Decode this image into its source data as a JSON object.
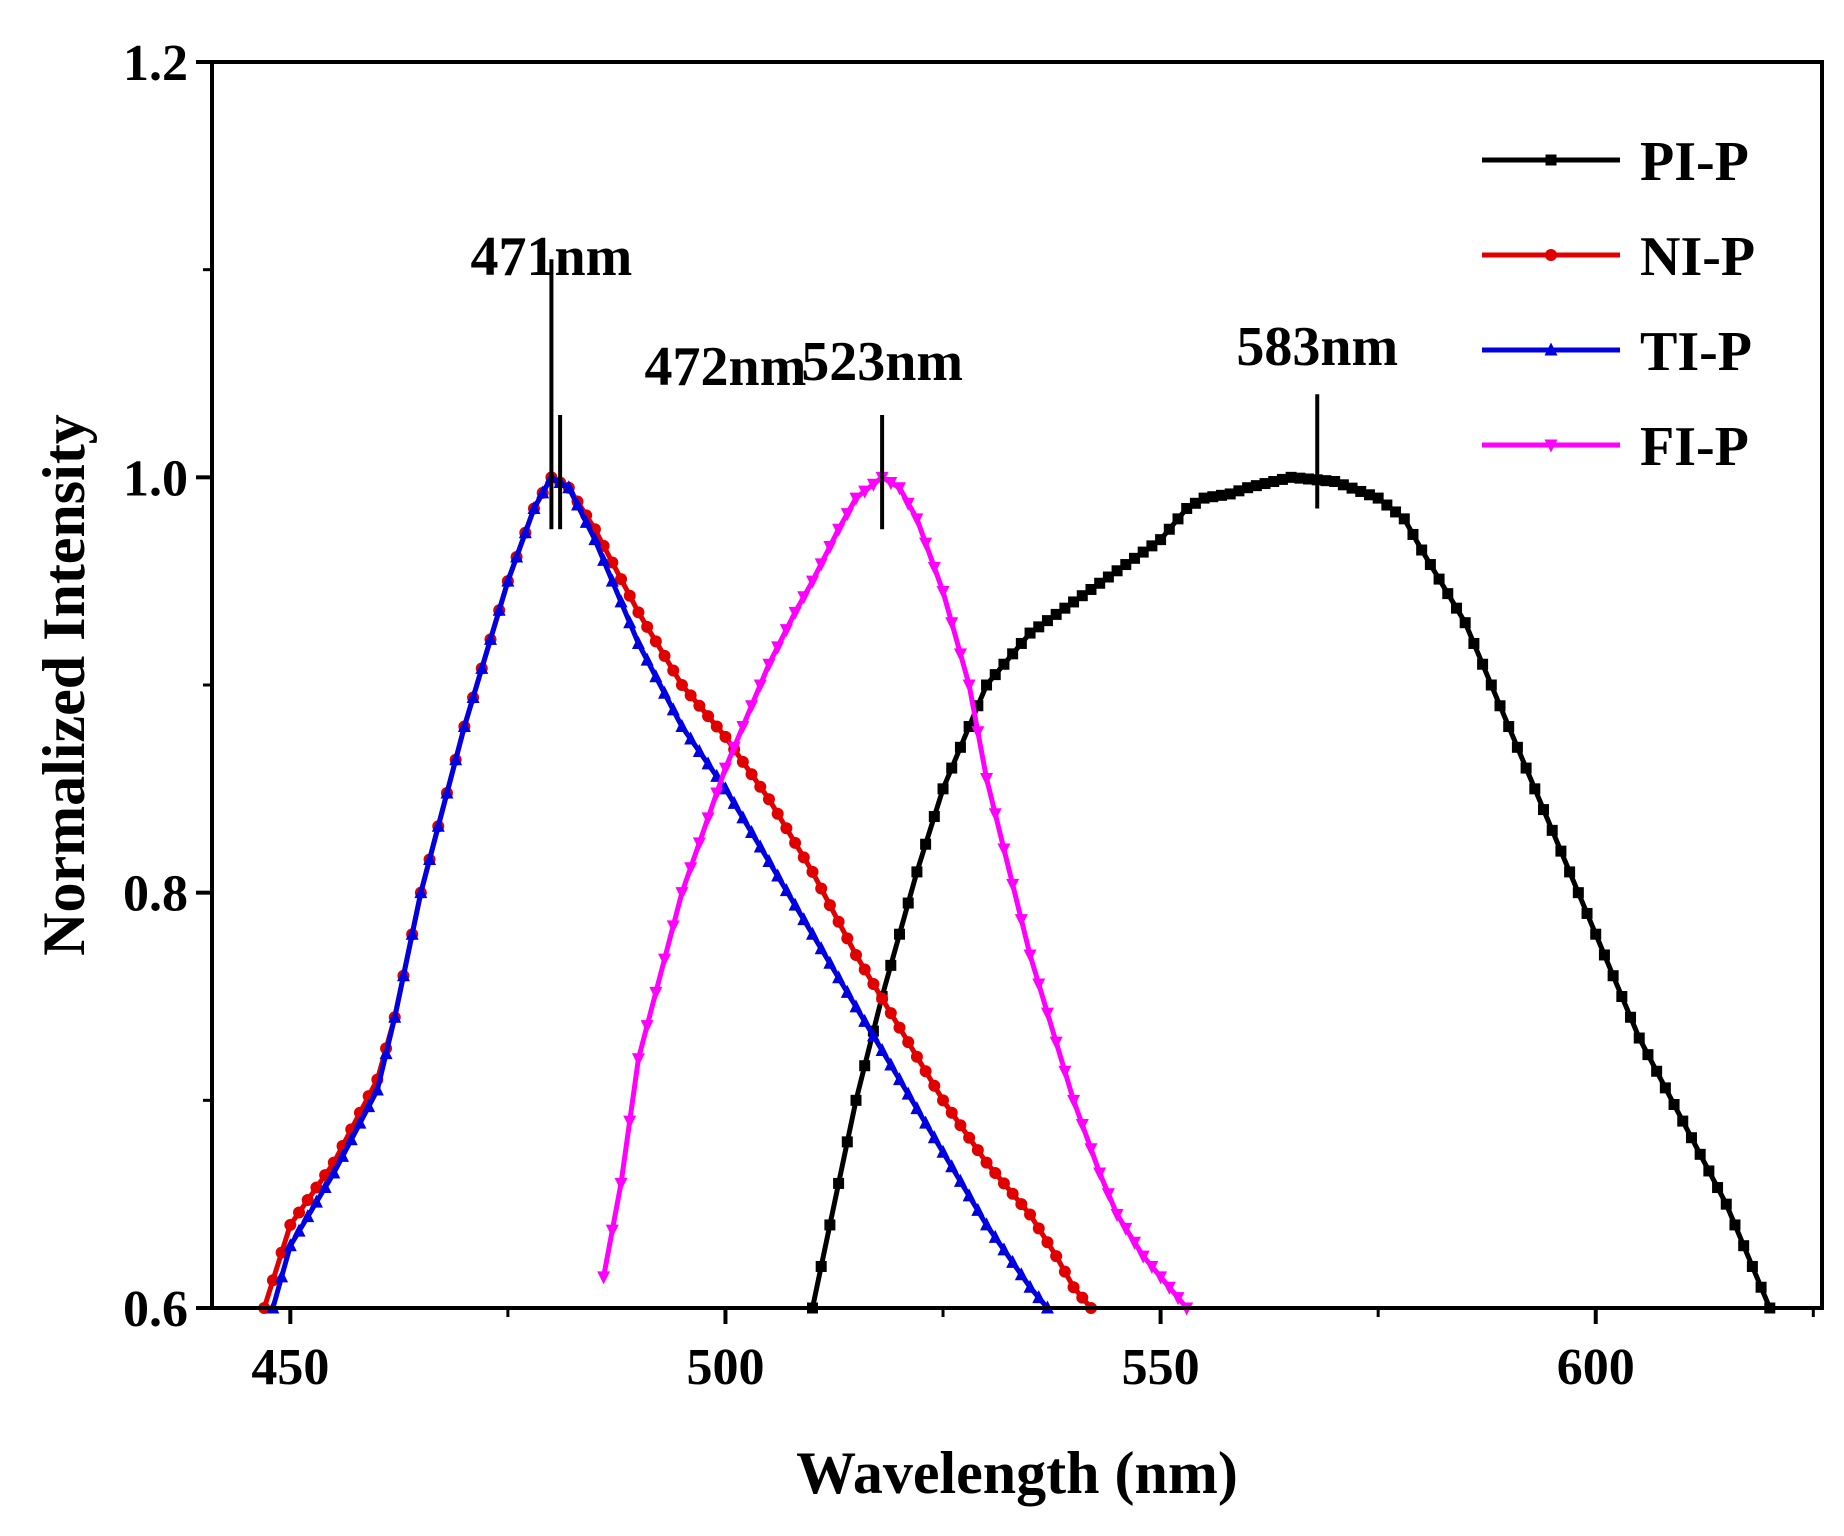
{
  "chart_data": {
    "type": "line",
    "title": "",
    "xlabel": "Wavelength (nm)",
    "ylabel": "Normalized Intensity",
    "xlim": [
      441,
      626
    ],
    "ylim": [
      0.6,
      1.2
    ],
    "xticks": [
      450,
      500,
      550,
      600
    ],
    "xtick_labels": [
      "450",
      "500",
      "550",
      "600"
    ],
    "yticks": [
      0.6,
      0.8,
      1.0,
      1.2
    ],
    "ytick_labels": [
      "0.6",
      "0.8",
      "1.0",
      "1.2"
    ],
    "grid": false,
    "legend_position": "top-right",
    "series": [
      {
        "name": "PI-P",
        "color": "#000000",
        "marker": "square",
        "x": [
          510,
          513,
          515,
          518,
          520,
          522,
          525,
          528,
          530,
          533,
          535,
          540,
          545,
          550,
          553,
          555,
          558,
          560,
          565,
          570,
          575,
          578,
          580,
          585,
          590,
          595,
          600,
          605,
          610,
          615,
          620
        ],
        "y": [
          0.6,
          0.66,
          0.7,
          0.75,
          0.78,
          0.81,
          0.85,
          0.88,
          0.9,
          0.915,
          0.925,
          0.94,
          0.955,
          0.97,
          0.985,
          0.99,
          0.992,
          0.995,
          1.0,
          0.998,
          0.99,
          0.98,
          0.965,
          0.93,
          0.88,
          0.83,
          0.78,
          0.73,
          0.69,
          0.65,
          0.6
        ]
      },
      {
        "name": "NI-P",
        "color": "#e00000",
        "marker": "circle",
        "x": [
          447,
          450,
          455,
          460,
          462,
          465,
          470,
          475,
          478,
          480,
          482,
          485,
          490,
          495,
          500,
          505,
          510,
          515,
          520,
          525,
          530,
          535,
          538,
          540,
          542
        ],
        "y": [
          0.6,
          0.64,
          0.67,
          0.71,
          0.74,
          0.8,
          0.88,
          0.95,
          0.985,
          1.0,
          0.995,
          0.975,
          0.935,
          0.9,
          0.875,
          0.845,
          0.81,
          0.77,
          0.735,
          0.7,
          0.67,
          0.645,
          0.625,
          0.61,
          0.6
        ]
      },
      {
        "name": "TI-P",
        "color": "#0000e0",
        "marker": "triangle-up",
        "x": [
          448,
          450,
          455,
          460,
          462,
          465,
          470,
          475,
          478,
          480,
          482,
          485,
          490,
          495,
          500,
          505,
          510,
          515,
          520,
          525,
          530,
          535,
          537
        ],
        "y": [
          0.6,
          0.63,
          0.665,
          0.705,
          0.74,
          0.8,
          0.88,
          0.95,
          0.985,
          1.0,
          0.995,
          0.97,
          0.92,
          0.88,
          0.85,
          0.815,
          0.78,
          0.745,
          0.71,
          0.675,
          0.64,
          0.61,
          0.6
        ]
      },
      {
        "name": "FI-P",
        "color": "#ff00ff",
        "marker": "triangle-down",
        "x": [
          486,
          488,
          490,
          495,
          500,
          505,
          508,
          510,
          513,
          515,
          518,
          520,
          522,
          525,
          528,
          530,
          535,
          540,
          543,
          545,
          548,
          550,
          553
        ],
        "y": [
          0.615,
          0.66,
          0.72,
          0.8,
          0.86,
          0.91,
          0.935,
          0.95,
          0.975,
          0.99,
          1.0,
          0.995,
          0.98,
          0.945,
          0.9,
          0.855,
          0.77,
          0.7,
          0.665,
          0.645,
          0.625,
          0.615,
          0.6
        ]
      }
    ],
    "annotations": [
      {
        "text": "471nm",
        "x": 480,
        "y_mark": 1.0
      },
      {
        "text": "472nm",
        "x": 481,
        "y_mark": 1.0
      },
      {
        "text": "523nm",
        "x": 518,
        "y_mark": 1.0
      },
      {
        "text": "583nm",
        "x": 568,
        "y_mark": 1.0
      }
    ]
  }
}
